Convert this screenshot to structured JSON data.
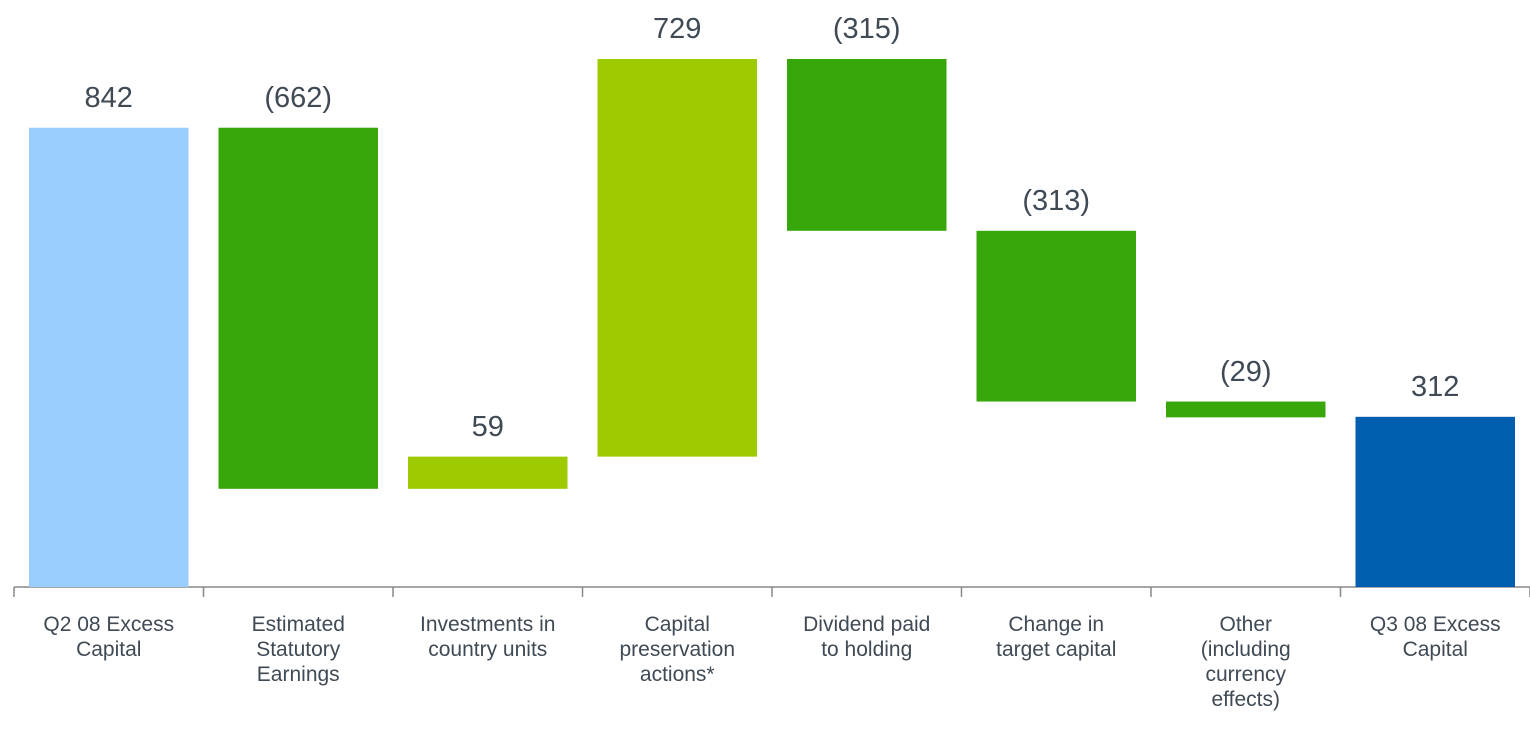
{
  "chart_data": {
    "type": "waterfall",
    "categories": [
      "Q2 08 Excess\nCapital",
      "Estimated\nStatutory\nEarnings",
      "Investments in\ncountry units",
      "Capital\npreservation\nactions*",
      "Dividend paid\nto holding",
      "Change in\ntarget capital",
      "Other\n(including\ncurrency\neffects)",
      "Q3 08 Excess\nCapital"
    ],
    "values": [
      842,
      -662,
      59,
      729,
      -315,
      -313,
      -29,
      312
    ],
    "value_labels": [
      "842",
      "(662)",
      "59",
      "729",
      "(315)",
      "(313)",
      "(29)",
      "312"
    ],
    "colors": [
      "#99ccff",
      "#38a70b",
      "#9dcb00",
      "#9dcb00",
      "#38a70b",
      "#38a70b",
      "#38a70b",
      "#005eb0"
    ]
  }
}
